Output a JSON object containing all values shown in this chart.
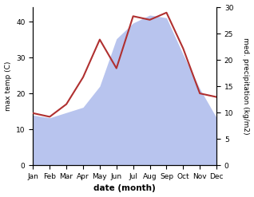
{
  "months": [
    "Jan",
    "Feb",
    "Mar",
    "Apr",
    "May",
    "Jun",
    "Jul",
    "Aug",
    "Sep",
    "Oct",
    "Nov",
    "Dec"
  ],
  "month_indices": [
    0,
    1,
    2,
    3,
    4,
    5,
    6,
    7,
    8,
    9,
    10,
    11
  ],
  "temperature": [
    14.5,
    13.5,
    17.0,
    24.5,
    35.0,
    27.0,
    41.5,
    40.5,
    42.5,
    32.5,
    20.0,
    19.0
  ],
  "precipitation": [
    9.5,
    9.0,
    10.0,
    11.0,
    15.0,
    24.0,
    27.0,
    28.5,
    28.0,
    21.0,
    14.5,
    9.0
  ],
  "temp_color": "#b03030",
  "precip_color": "#b8c4ee",
  "ylabel_left": "max temp (C)",
  "ylabel_right": "med. precipitation (kg/m2)",
  "xlabel": "date (month)",
  "ylim_left": [
    0,
    44
  ],
  "ylim_right": [
    0,
    30
  ],
  "yticks_left": [
    0,
    10,
    20,
    30,
    40
  ],
  "yticks_right": [
    0,
    5,
    10,
    15,
    20,
    25,
    30
  ],
  "background_color": "#ffffff",
  "fig_width": 3.18,
  "fig_height": 2.47,
  "dpi": 100
}
